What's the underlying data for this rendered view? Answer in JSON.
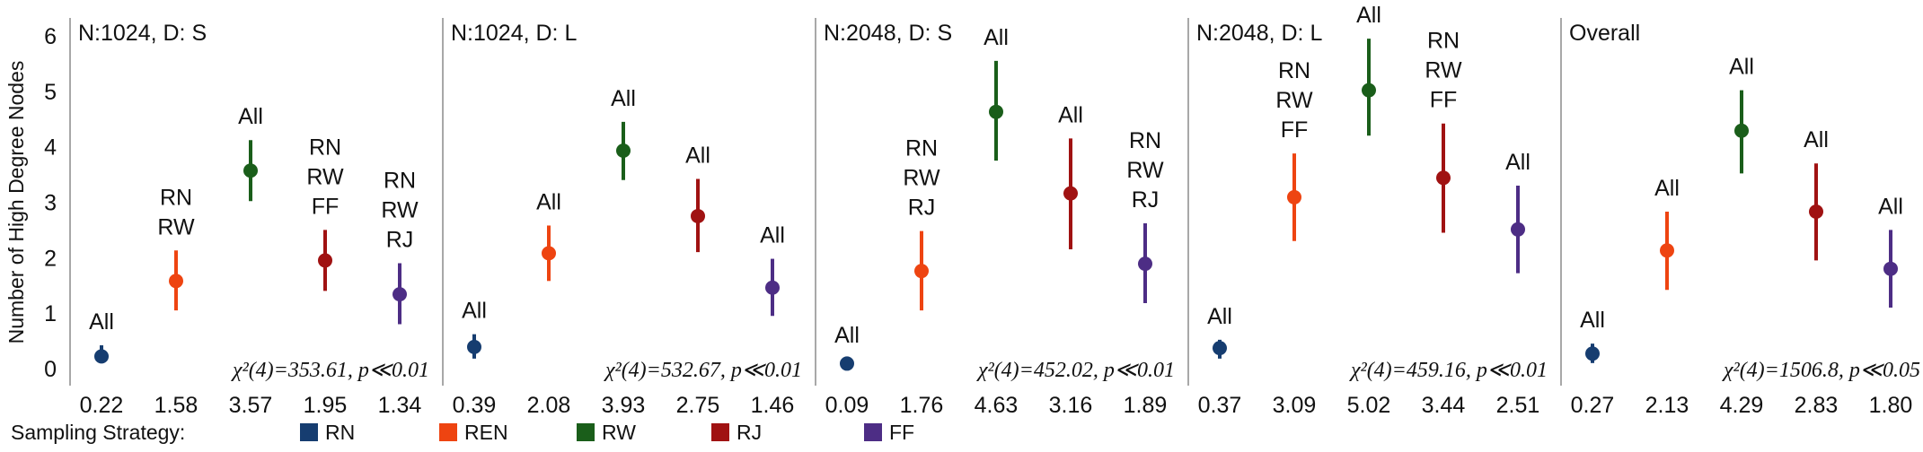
{
  "chart_data": {
    "type": "scatter",
    "ylabel": "Number of High Degree Nodes",
    "ylim": [
      0,
      6
    ],
    "yticks": [
      "0",
      "1",
      "2",
      "3",
      "4",
      "5",
      "6"
    ],
    "legend": {
      "title": "Sampling Strategy:",
      "placement": "bottom-left",
      "items": [
        {
          "name": "RN",
          "color": "#163d70"
        },
        {
          "name": "REN",
          "color": "#ee4411"
        },
        {
          "name": "RW",
          "color": "#1a5e1a"
        },
        {
          "name": "RJ",
          "color": "#a01212"
        },
        {
          "name": "FF",
          "color": "#4d2d85"
        }
      ]
    },
    "panels": [
      {
        "title": "N:1024, D: S",
        "stat": "χ²(4)=353.61, p≪0.01",
        "points": [
          {
            "strategy": "RN",
            "value": 0.22,
            "low": 0.12,
            "high": 0.42,
            "label": "0.22",
            "group": [
              "All"
            ]
          },
          {
            "strategy": "REN",
            "value": 1.58,
            "low": 1.05,
            "high": 2.13,
            "label": "1.58",
            "group": [
              "RN",
              "RW"
            ]
          },
          {
            "strategy": "RW",
            "value": 3.57,
            "low": 3.02,
            "high": 4.12,
            "label": "3.57",
            "group": [
              "All"
            ]
          },
          {
            "strategy": "RJ",
            "value": 1.95,
            "low": 1.4,
            "high": 2.5,
            "label": "1.95",
            "group": [
              "RN",
              "RW",
              "FF"
            ]
          },
          {
            "strategy": "FF",
            "value": 1.34,
            "low": 0.8,
            "high": 1.9,
            "label": "1.34",
            "group": [
              "RN",
              "RW",
              "RJ"
            ]
          }
        ]
      },
      {
        "title": "N:1024, D: L",
        "stat": "χ²(4)=532.67, p≪0.01",
        "points": [
          {
            "strategy": "RN",
            "value": 0.39,
            "low": 0.18,
            "high": 0.62,
            "label": "0.39",
            "group": [
              "All"
            ]
          },
          {
            "strategy": "REN",
            "value": 2.08,
            "low": 1.58,
            "high": 2.58,
            "label": "2.08",
            "group": [
              "All"
            ]
          },
          {
            "strategy": "RW",
            "value": 3.93,
            "low": 3.4,
            "high": 4.45,
            "label": "3.93",
            "group": [
              "All"
            ]
          },
          {
            "strategy": "RJ",
            "value": 2.75,
            "low": 2.1,
            "high": 3.42,
            "label": "2.75",
            "group": [
              "All"
            ]
          },
          {
            "strategy": "FF",
            "value": 1.46,
            "low": 0.95,
            "high": 1.98,
            "label": "1.46",
            "group": [
              "All"
            ]
          }
        ]
      },
      {
        "title": "N:2048, D: S",
        "stat": "χ²(4)=452.02, p≪0.01",
        "points": [
          {
            "strategy": "RN",
            "value": 0.09,
            "low": 0.02,
            "high": 0.18,
            "label": "0.09",
            "group": [
              "All"
            ]
          },
          {
            "strategy": "REN",
            "value": 1.76,
            "low": 1.05,
            "high": 2.48,
            "label": "1.76",
            "group": [
              "RN",
              "RW",
              "RJ"
            ]
          },
          {
            "strategy": "RW",
            "value": 4.63,
            "low": 3.75,
            "high": 5.55,
            "label": "4.63",
            "group": [
              "All"
            ]
          },
          {
            "strategy": "RJ",
            "value": 3.16,
            "low": 2.15,
            "high": 4.15,
            "label": "3.16",
            "group": [
              "All"
            ]
          },
          {
            "strategy": "FF",
            "value": 1.89,
            "low": 1.18,
            "high": 2.62,
            "label": "1.89",
            "group": [
              "RN",
              "RW",
              "RJ"
            ]
          }
        ]
      },
      {
        "title": "N:2048, D: L",
        "stat": "χ²(4)=459.16, p≪0.01",
        "points": [
          {
            "strategy": "RN",
            "value": 0.37,
            "low": 0.18,
            "high": 0.52,
            "label": "0.37",
            "group": [
              "All"
            ]
          },
          {
            "strategy": "REN",
            "value": 3.09,
            "low": 2.3,
            "high": 3.88,
            "label": "3.09",
            "group": [
              "RN",
              "RW",
              "FF"
            ]
          },
          {
            "strategy": "RW",
            "value": 5.02,
            "low": 4.2,
            "high": 5.95,
            "label": "5.02",
            "group": [
              "All"
            ]
          },
          {
            "strategy": "RJ",
            "value": 3.44,
            "low": 2.45,
            "high": 4.42,
            "label": "3.44",
            "group": [
              "RN",
              "RW",
              "FF"
            ]
          },
          {
            "strategy": "FF",
            "value": 2.51,
            "low": 1.72,
            "high": 3.3,
            "label": "2.51",
            "group": [
              "All"
            ]
          }
        ]
      },
      {
        "title": "Overall",
        "stat": "χ²(4)=1506.8, p≪0.05",
        "points": [
          {
            "strategy": "RN",
            "value": 0.27,
            "low": 0.1,
            "high": 0.45,
            "label": "0.27",
            "group": [
              "All"
            ]
          },
          {
            "strategy": "REN",
            "value": 2.13,
            "low": 1.42,
            "high": 2.83,
            "label": "2.13",
            "group": [
              "All"
            ]
          },
          {
            "strategy": "RW",
            "value": 4.29,
            "low": 3.52,
            "high": 5.02,
            "label": "4.29",
            "group": [
              "All"
            ]
          },
          {
            "strategy": "RJ",
            "value": 2.83,
            "low": 1.95,
            "high": 3.7,
            "label": "2.83",
            "group": [
              "All"
            ]
          },
          {
            "strategy": "FF",
            "value": 1.8,
            "low": 1.1,
            "high": 2.5,
            "label": "1.80",
            "group": [
              "All"
            ]
          }
        ]
      }
    ]
  }
}
